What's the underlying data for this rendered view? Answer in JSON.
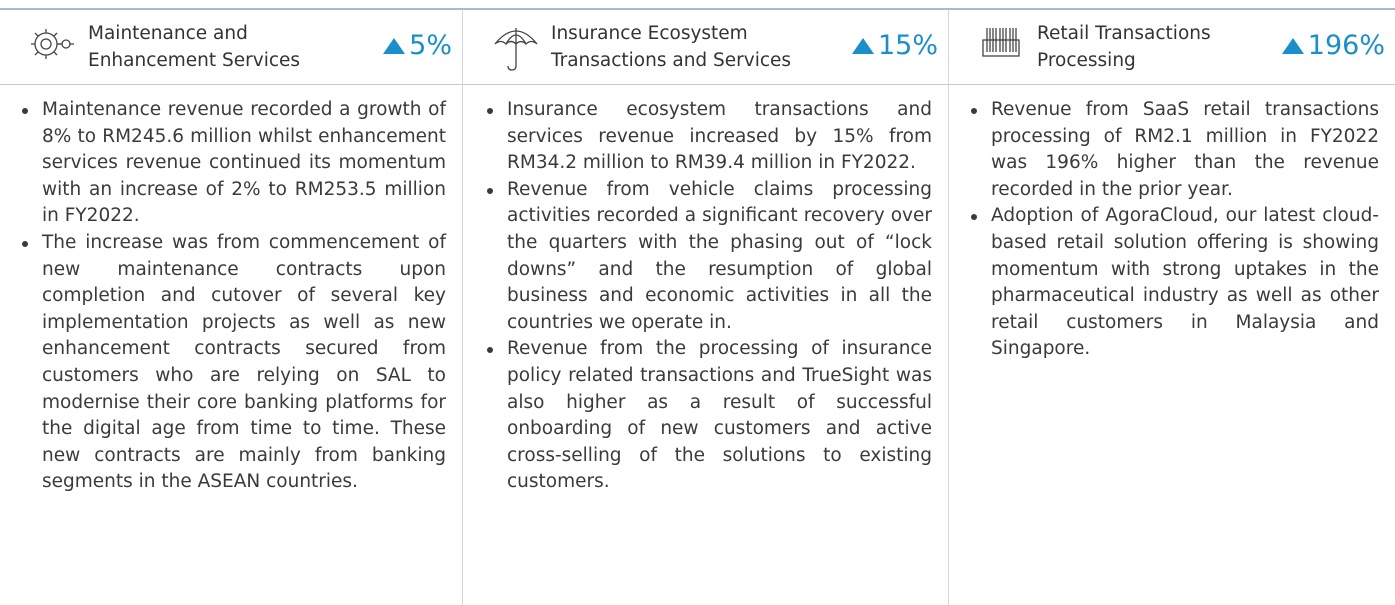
{
  "columns": [
    {
      "title_lines": [
        "Maintenance and",
        "Enhancement Services"
      ],
      "change": "5%",
      "bullets": [
        "Maintenance revenue recorded a growth of 8% to RM245.6 million whilst enhancement services revenue continued its momentum with an increase of 2% to RM253.5 million in FY2022.",
        "The increase was from commencement of new maintenance contracts upon completion and cutover of several key implementation projects as well as new enhancement contracts secured from customers who are relying on SAL to modernise their core banking platforms for the digital age from time to time. These new contracts are mainly from banking segments in the ASEAN countries."
      ]
    },
    {
      "title_lines": [
        "Insurance Ecosystem",
        "Transactions and Services"
      ],
      "change": "15%",
      "bullets": [
        "Insurance ecosystem transactions and services revenue increased by 15% from RM34.2 million to RM39.4 million in FY2022.",
        "Revenue from vehicle claims processing activities recorded a significant recovery over the quarters with the phasing out of “lock downs” and the resumption of global business and economic activities in all the countries we operate in.",
        "Revenue from the processing of insurance policy related transactions and TrueSight was also higher as a result of successful onboarding of new customers and active cross-selling of the solutions to existing customers."
      ]
    },
    {
      "title_lines": [
        "Retail Transactions",
        "Processing"
      ],
      "change": "196%",
      "bullets": [
        "Revenue from SaaS retail transactions processing of RM2.1 million in FY2022 was 196% higher than the revenue recorded in the prior year.",
        "Adoption of AgoraCloud, our latest cloud-based retail solution offering is showing momentum with strong uptakes in the pharmaceutical industry as well as other retail customers in Malaysia and Singapore."
      ]
    }
  ]
}
